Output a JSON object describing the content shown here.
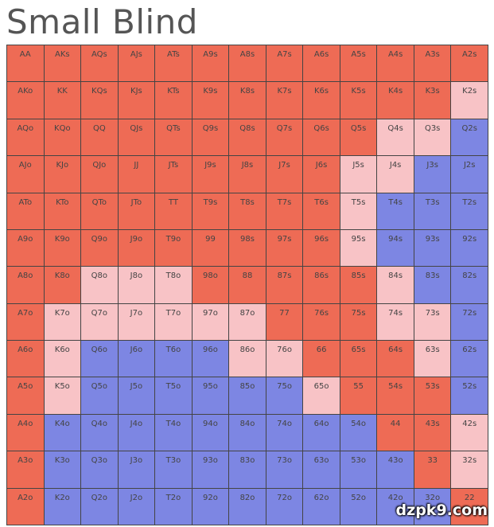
{
  "header": {
    "title": "Small Blind"
  },
  "grid": {
    "labels": [
      [
        "AA",
        "AKs",
        "AQs",
        "AJs",
        "ATs",
        "A9s",
        "A8s",
        "A7s",
        "A6s",
        "A5s",
        "A4s",
        "A3s",
        "A2s"
      ],
      [
        "AKo",
        "KK",
        "KQs",
        "KJs",
        "KTs",
        "K9s",
        "K8s",
        "K7s",
        "K6s",
        "K5s",
        "K4s",
        "K3s",
        "K2s"
      ],
      [
        "AQo",
        "KQo",
        "QQ",
        "QJs",
        "QTs",
        "Q9s",
        "Q8s",
        "Q7s",
        "Q6s",
        "Q5s",
        "Q4s",
        "Q3s",
        "Q2s"
      ],
      [
        "AJo",
        "KJo",
        "QJo",
        "JJ",
        "JTs",
        "J9s",
        "J8s",
        "J7s",
        "J6s",
        "J5s",
        "J4s",
        "J3s",
        "J2s"
      ],
      [
        "ATo",
        "KTo",
        "QTo",
        "JTo",
        "TT",
        "T9s",
        "T8s",
        "T7s",
        "T6s",
        "T5s",
        "T4s",
        "T3s",
        "T2s"
      ],
      [
        "A9o",
        "K9o",
        "Q9o",
        "J9o",
        "T9o",
        "99",
        "98s",
        "97s",
        "96s",
        "95s",
        "94s",
        "93s",
        "92s"
      ],
      [
        "A8o",
        "K8o",
        "Q8o",
        "J8o",
        "T8o",
        "98o",
        "88",
        "87s",
        "86s",
        "85s",
        "84s",
        "83s",
        "82s"
      ],
      [
        "A7o",
        "K7o",
        "Q7o",
        "J7o",
        "T7o",
        "97o",
        "87o",
        "77",
        "76s",
        "75s",
        "74s",
        "73s",
        "72s"
      ],
      [
        "A6o",
        "K6o",
        "Q6o",
        "J6o",
        "T6o",
        "96o",
        "86o",
        "76o",
        "66",
        "65s",
        "64s",
        "63s",
        "62s"
      ],
      [
        "A5o",
        "K5o",
        "Q5o",
        "J5o",
        "T5o",
        "95o",
        "85o",
        "75o",
        "65o",
        "55",
        "54s",
        "53s",
        "52s"
      ],
      [
        "A4o",
        "K4o",
        "Q4o",
        "J4o",
        "T4o",
        "94o",
        "84o",
        "74o",
        "64o",
        "54o",
        "44",
        "43s",
        "42s"
      ],
      [
        "A3o",
        "K3o",
        "Q3o",
        "J3o",
        "T3o",
        "93o",
        "83o",
        "73o",
        "63o",
        "53o",
        "43o",
        "33",
        "32s"
      ],
      [
        "A2o",
        "K2o",
        "Q2o",
        "J2o",
        "T2o",
        "92o",
        "82o",
        "72o",
        "62o",
        "52o",
        "42o",
        "32o",
        "22"
      ]
    ],
    "colors": [
      [
        "#ee6b55",
        "#ee6b55",
        "#ee6b55",
        "#ee6b55",
        "#ee6b55",
        "#ee6b55",
        "#ee6b55",
        "#ee6b55",
        "#ee6b55",
        "#ee6b55",
        "#ee6b55",
        "#ee6b55",
        "#ee6b55"
      ],
      [
        "#ee6b55",
        "#ee6b55",
        "#ee6b55",
        "#ee6b55",
        "#ee6b55",
        "#ee6b55",
        "#ee6b55",
        "#ee6b55",
        "#ee6b55",
        "#ee6b55",
        "#ee6b55",
        "#ee6b55",
        "#f8c3c6"
      ],
      [
        "#ee6b55",
        "#ee6b55",
        "#ee6b55",
        "#ee6b55",
        "#ee6b55",
        "#ee6b55",
        "#ee6b55",
        "#ee6b55",
        "#ee6b55",
        "#ee6b55",
        "#f8c3c6",
        "#f8c3c6",
        "#7d86e3"
      ],
      [
        "#ee6b55",
        "#ee6b55",
        "#ee6b55",
        "#ee6b55",
        "#ee6b55",
        "#ee6b55",
        "#ee6b55",
        "#ee6b55",
        "#ee6b55",
        "#f8c3c6",
        "#f8c3c6",
        "#7d86e3",
        "#7d86e3"
      ],
      [
        "#ee6b55",
        "#ee6b55",
        "#ee6b55",
        "#ee6b55",
        "#ee6b55",
        "#ee6b55",
        "#ee6b55",
        "#ee6b55",
        "#ee6b55",
        "#f8c3c6",
        "#7d86e3",
        "#7d86e3",
        "#7d86e3"
      ],
      [
        "#ee6b55",
        "#ee6b55",
        "#ee6b55",
        "#ee6b55",
        "#ee6b55",
        "#ee6b55",
        "#ee6b55",
        "#ee6b55",
        "#ee6b55",
        "#f8c3c6",
        "#7d86e3",
        "#7d86e3",
        "#7d86e3"
      ],
      [
        "#ee6b55",
        "#ee6b55",
        "#f8c3c6",
        "#f8c3c6",
        "#f8c3c6",
        "#ee6b55",
        "#ee6b55",
        "#ee6b55",
        "#ee6b55",
        "#ee6b55",
        "#f8c3c6",
        "#7d86e3",
        "#7d86e3"
      ],
      [
        "#ee6b55",
        "#f8c3c6",
        "#f8c3c6",
        "#f8c3c6",
        "#f8c3c6",
        "#f8c3c6",
        "#f8c3c6",
        "#ee6b55",
        "#ee6b55",
        "#ee6b55",
        "#f8c3c6",
        "#f8c3c6",
        "#7d86e3"
      ],
      [
        "#ee6b55",
        "#f8c3c6",
        "#7d86e3",
        "#7d86e3",
        "#7d86e3",
        "#7d86e3",
        "#f8c3c6",
        "#f8c3c6",
        "#ee6b55",
        "#ee6b55",
        "#ee6b55",
        "#f8c3c6",
        "#7d86e3"
      ],
      [
        "#ee6b55",
        "#f8c3c6",
        "#7d86e3",
        "#7d86e3",
        "#7d86e3",
        "#7d86e3",
        "#7d86e3",
        "#7d86e3",
        "#f8c3c6",
        "#ee6b55",
        "#ee6b55",
        "#ee6b55",
        "#7d86e3"
      ],
      [
        "#ee6b55",
        "#7d86e3",
        "#7d86e3",
        "#7d86e3",
        "#7d86e3",
        "#7d86e3",
        "#7d86e3",
        "#7d86e3",
        "#7d86e3",
        "#7d86e3",
        "#ee6b55",
        "#ee6b55",
        "#f8c3c6"
      ],
      [
        "#ee6b55",
        "#7d86e3",
        "#7d86e3",
        "#7d86e3",
        "#7d86e3",
        "#7d86e3",
        "#7d86e3",
        "#7d86e3",
        "#7d86e3",
        "#7d86e3",
        "#7d86e3",
        "#ee6b55",
        "#f8c3c6"
      ],
      [
        "#ee6b55",
        "#7d86e3",
        "#7d86e3",
        "#7d86e3",
        "#7d86e3",
        "#7d86e3",
        "#7d86e3",
        "#7d86e3",
        "#7d86e3",
        "#7d86e3",
        "#7d86e3",
        "#7d86e3",
        "#ee6b55"
      ]
    ]
  },
  "watermark": "dzpk9.com"
}
